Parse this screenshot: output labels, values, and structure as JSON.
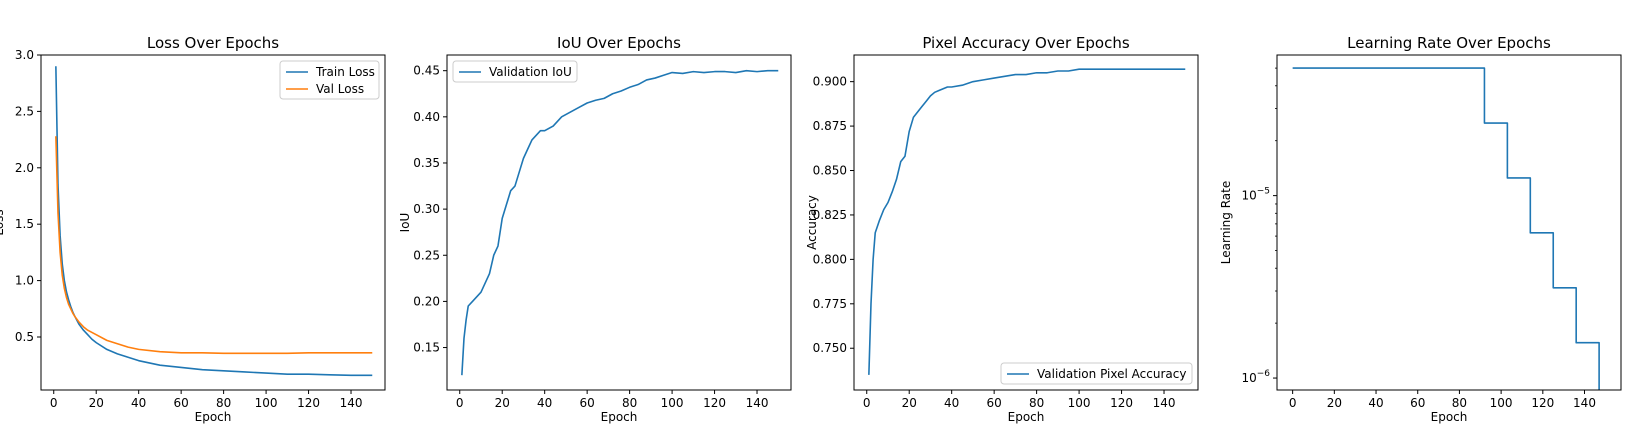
{
  "colors": {
    "blue": "#1f77b4",
    "orange": "#ff7f0e"
  },
  "chart_data": [
    {
      "type": "line",
      "title": "Loss Over Epochs",
      "xlabel": "Epoch",
      "ylabel": "Loss",
      "xlim": [
        -6,
        156
      ],
      "ylim": [
        0.03,
        3.0
      ],
      "xticks": [
        0,
        20,
        40,
        60,
        80,
        100,
        120,
        140
      ],
      "yticks": [
        0.5,
        1.0,
        1.5,
        2.0,
        2.5,
        3.0
      ],
      "ytick_labels": [
        "0.5",
        "1.0",
        "1.5",
        "2.0",
        "2.5",
        "3.0"
      ],
      "legend": "top-right",
      "series": [
        {
          "name": "Train Loss",
          "color": "#1f77b4",
          "x": [
            1,
            2,
            3,
            4,
            5,
            6,
            7,
            8,
            9,
            10,
            12,
            14,
            16,
            18,
            20,
            25,
            30,
            35,
            40,
            50,
            60,
            70,
            80,
            90,
            100,
            110,
            120,
            130,
            140,
            150
          ],
          "y": [
            2.9,
            1.85,
            1.4,
            1.15,
            1.0,
            0.9,
            0.83,
            0.77,
            0.72,
            0.68,
            0.61,
            0.56,
            0.52,
            0.48,
            0.45,
            0.39,
            0.35,
            0.32,
            0.29,
            0.25,
            0.23,
            0.21,
            0.2,
            0.19,
            0.18,
            0.17,
            0.17,
            0.165,
            0.16,
            0.16
          ]
        },
        {
          "name": "Val Loss",
          "color": "#ff7f0e",
          "x": [
            1,
            2,
            3,
            4,
            5,
            6,
            7,
            8,
            9,
            10,
            12,
            14,
            16,
            18,
            20,
            25,
            30,
            35,
            40,
            50,
            60,
            70,
            80,
            90,
            100,
            110,
            120,
            130,
            140,
            150
          ],
          "y": [
            2.28,
            1.6,
            1.25,
            1.05,
            0.93,
            0.85,
            0.79,
            0.75,
            0.71,
            0.68,
            0.63,
            0.59,
            0.56,
            0.54,
            0.52,
            0.47,
            0.44,
            0.41,
            0.39,
            0.37,
            0.36,
            0.36,
            0.355,
            0.355,
            0.355,
            0.355,
            0.36,
            0.36,
            0.36,
            0.36
          ]
        }
      ]
    },
    {
      "type": "line",
      "title": "IoU Over Epochs",
      "xlabel": "Epoch",
      "ylabel": "IoU",
      "xlim": [
        -6,
        156
      ],
      "ylim": [
        0.104,
        0.467
      ],
      "xticks": [
        0,
        20,
        40,
        60,
        80,
        100,
        120,
        140
      ],
      "yticks": [
        0.15,
        0.2,
        0.25,
        0.3,
        0.35,
        0.4,
        0.45
      ],
      "ytick_labels": [
        "0.15",
        "0.20",
        "0.25",
        "0.30",
        "0.35",
        "0.40",
        "0.45"
      ],
      "legend": "top-left",
      "series": [
        {
          "name": "Validation IoU",
          "color": "#1f77b4",
          "x": [
            1,
            2,
            3,
            4,
            6,
            8,
            10,
            12,
            14,
            16,
            18,
            20,
            22,
            24,
            26,
            28,
            30,
            32,
            34,
            36,
            38,
            40,
            44,
            48,
            52,
            56,
            60,
            64,
            68,
            72,
            76,
            80,
            84,
            88,
            92,
            96,
            100,
            105,
            110,
            115,
            120,
            125,
            130,
            135,
            140,
            145,
            150
          ],
          "y": [
            0.12,
            0.16,
            0.18,
            0.195,
            0.2,
            0.205,
            0.21,
            0.22,
            0.23,
            0.25,
            0.26,
            0.29,
            0.305,
            0.32,
            0.325,
            0.34,
            0.355,
            0.365,
            0.375,
            0.38,
            0.385,
            0.385,
            0.39,
            0.4,
            0.405,
            0.41,
            0.415,
            0.418,
            0.42,
            0.425,
            0.428,
            0.432,
            0.435,
            0.44,
            0.442,
            0.445,
            0.448,
            0.447,
            0.449,
            0.448,
            0.449,
            0.449,
            0.448,
            0.45,
            0.449,
            0.45,
            0.45
          ]
        }
      ]
    },
    {
      "type": "line",
      "title": "Pixel Accuracy Over Epochs",
      "xlabel": "Epoch",
      "ylabel": "Accuracy",
      "xlim": [
        -6,
        156
      ],
      "ylim": [
        0.7265,
        0.915
      ],
      "xticks": [
        0,
        20,
        40,
        60,
        80,
        100,
        120,
        140
      ],
      "yticks": [
        0.75,
        0.775,
        0.8,
        0.825,
        0.85,
        0.875,
        0.9
      ],
      "ytick_labels": [
        "0.750",
        "0.775",
        "0.800",
        "0.825",
        "0.850",
        "0.875",
        "0.900"
      ],
      "legend": "bottom-right",
      "series": [
        {
          "name": "Validation Pixel Accuracy",
          "color": "#1f77b4",
          "x": [
            1,
            2,
            3,
            4,
            6,
            8,
            10,
            12,
            14,
            16,
            18,
            20,
            22,
            24,
            26,
            28,
            30,
            32,
            34,
            36,
            38,
            40,
            45,
            50,
            55,
            60,
            65,
            70,
            75,
            80,
            85,
            90,
            95,
            100,
            110,
            120,
            130,
            140,
            150
          ],
          "y": [
            0.735,
            0.775,
            0.8,
            0.815,
            0.822,
            0.828,
            0.832,
            0.838,
            0.845,
            0.855,
            0.858,
            0.872,
            0.88,
            0.883,
            0.886,
            0.889,
            0.892,
            0.894,
            0.895,
            0.896,
            0.897,
            0.897,
            0.898,
            0.9,
            0.901,
            0.902,
            0.903,
            0.904,
            0.904,
            0.905,
            0.905,
            0.906,
            0.906,
            0.907,
            0.907,
            0.907,
            0.907,
            0.907,
            0.907
          ]
        }
      ]
    },
    {
      "type": "line",
      "title": "Learning Rate Over Epochs",
      "xlabel": "Epoch",
      "ylabel": "Learning Rate",
      "xlim": [
        -7.5,
        157.5
      ],
      "ylim": [
        8.6e-07,
        5.9e-05
      ],
      "yscale": "log",
      "xticks": [
        0,
        20,
        40,
        60,
        80,
        100,
        120,
        140
      ],
      "ytick_major": [
        {
          "value": 1e-05,
          "base": "10",
          "exp": "−5"
        },
        {
          "value": 1e-06,
          "base": "10",
          "exp": "−6"
        }
      ],
      "ytick_minor": [
        2e-06,
        3e-06,
        4e-06,
        5e-06,
        6e-06,
        7e-06,
        8e-06,
        9e-06,
        2e-05,
        3e-05,
        4e-05,
        5e-05
      ],
      "series": [
        {
          "color": "#1f77b4",
          "x": [
            0,
            92,
            92,
            103,
            103,
            114,
            114,
            125,
            125,
            136,
            136,
            147,
            147,
            149
          ],
          "y": [
            5e-05,
            5e-05,
            2.5e-05,
            2.5e-05,
            1.25e-05,
            1.25e-05,
            6.25e-06,
            6.25e-06,
            3.125e-06,
            3.125e-06,
            1.5625e-06,
            1.5625e-06,
            7.8125e-07,
            7.8125e-07
          ]
        }
      ]
    }
  ]
}
